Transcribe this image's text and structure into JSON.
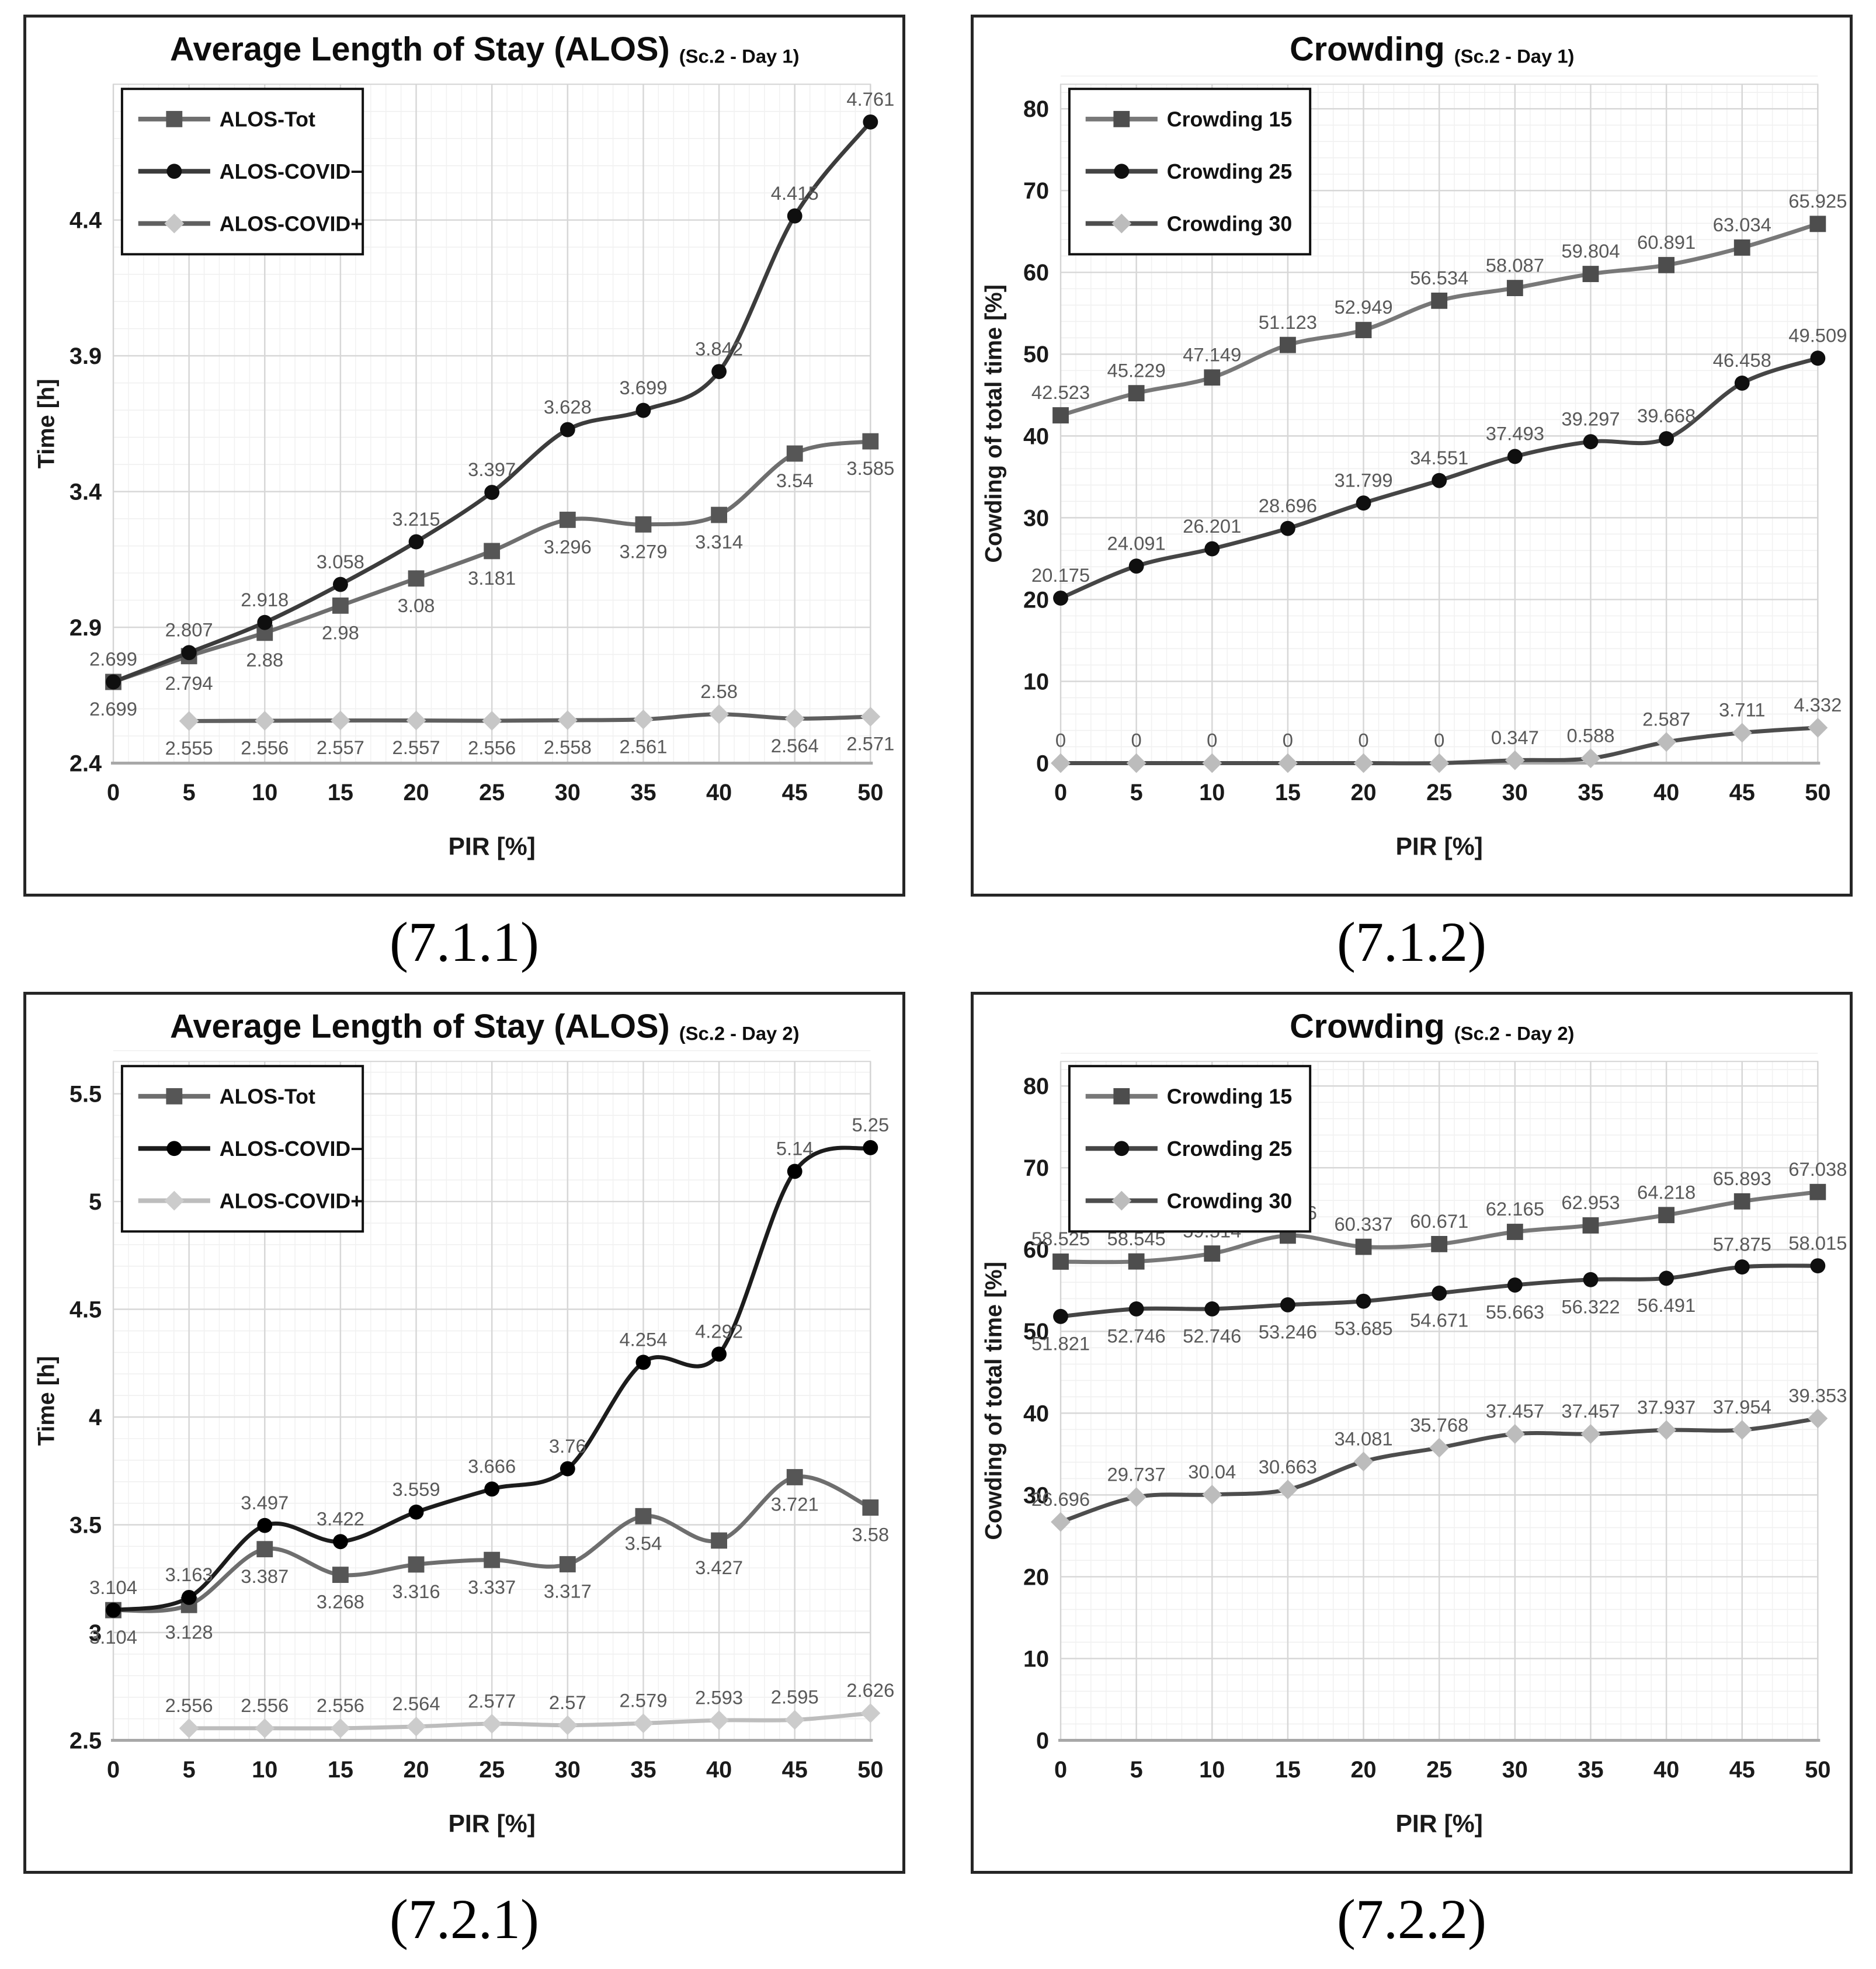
{
  "page": {
    "background": "#ffffff"
  },
  "chart_data": [
    {
      "caption": "(7.1.1)",
      "type": "line",
      "title": "Average Length of Stay (ALOS)",
      "title_tag": "(Sc.2 - Day 1)",
      "xlabel": "PIR [%]",
      "ylabel": "Time [h]",
      "x": [
        0,
        5,
        10,
        15,
        20,
        25,
        30,
        35,
        40,
        45,
        50
      ],
      "ylim": [
        2.4,
        4.9
      ],
      "yticks": [
        2.4,
        2.9,
        3.4,
        3.9,
        4.4
      ],
      "y_minor": 0.1,
      "grid": true,
      "legend_position": "top-left",
      "series": [
        {
          "name": "ALOS-Tot",
          "marker": "square",
          "line_color": "#6e6e6e",
          "marker_color": "#565656",
          "label_side": "below",
          "values": [
            "2.699",
            "2.794",
            "2.88",
            "2.98",
            "3.08",
            "3.181",
            "3.296",
            "3.279",
            "3.314",
            "3.54",
            "3.585"
          ]
        },
        {
          "name": "ALOS-COVID−",
          "marker": "circle",
          "line_color": "#3c3c3c",
          "marker_color": "#0f0f0f",
          "label_side": "above",
          "values": [
            "2.699",
            "2.807",
            "2.918",
            "3.058",
            "3.215",
            "3.397",
            "3.628",
            "3.699",
            "3.842",
            "4.415",
            "4.761"
          ]
        },
        {
          "name": "ALOS-COVID+",
          "marker": "diamond",
          "line_color": "#5f5f5f",
          "marker_color": "#c7c7c7",
          "label_side": "below",
          "label_sides": [
            null,
            null,
            null,
            null,
            null,
            null,
            null,
            null,
            "above",
            null,
            null
          ],
          "values": [
            null,
            "2.555",
            "2.556",
            "2.557",
            "2.557",
            "2.556",
            "2.558",
            "2.561",
            "2.58",
            "2.564",
            "2.571"
          ]
        }
      ]
    },
    {
      "caption": "(7.1.2)",
      "type": "line",
      "title": "Crowding",
      "title_tag": "(Sc.2 - Day 1)",
      "xlabel": "PIR [%]",
      "ylabel": "Cowding of total time [%]",
      "x": [
        0,
        5,
        10,
        15,
        20,
        25,
        30,
        35,
        40,
        45,
        50
      ],
      "ylim": [
        0,
        83
      ],
      "yticks": [
        0,
        10,
        20,
        30,
        40,
        50,
        60,
        70,
        80
      ],
      "y_minor": 2,
      "grid": true,
      "legend_position": "top-left",
      "series": [
        {
          "name": "Crowding 15",
          "marker": "square",
          "line_color": "#787878",
          "marker_color": "#4d4d4d",
          "label_side": "above",
          "values": [
            "42.523",
            "45.229",
            "47.149",
            "51.123",
            "52.949",
            "56.534",
            "58.087",
            "59.804",
            "60.891",
            "63.034",
            "65.925"
          ]
        },
        {
          "name": "Crowding 25",
          "marker": "circle",
          "line_color": "#454545",
          "marker_color": "#0f0f0f",
          "label_side": "above",
          "values": [
            "20.175",
            "24.091",
            "26.201",
            "28.696",
            "31.799",
            "34.551",
            "37.493",
            "39.297",
            "39.668",
            "46.458",
            "49.509"
          ]
        },
        {
          "name": "Crowding 30",
          "marker": "diamond",
          "line_color": "#4d4d4d",
          "marker_color": "#bcbcbc",
          "label_side": "above",
          "values": [
            "0",
            "0",
            "0",
            "0",
            "0",
            "0",
            "0.347",
            "0.588",
            "2.587",
            "3.711",
            "4.332"
          ]
        }
      ]
    },
    {
      "caption": "(7.2.1)",
      "type": "line",
      "title": "Average Length of Stay (ALOS)",
      "title_tag": "(Sc.2 - Day 2)",
      "xlabel": "PIR [%]",
      "ylabel": "Time [h]",
      "x": [
        0,
        5,
        10,
        15,
        20,
        25,
        30,
        35,
        40,
        45,
        50
      ],
      "ylim": [
        2.5,
        5.65
      ],
      "yticks": [
        2.5,
        3,
        3.5,
        4,
        4.5,
        5,
        5.5
      ],
      "y_minor": 0.1,
      "grid": true,
      "legend_position": "top-left",
      "series": [
        {
          "name": "ALOS-Tot",
          "marker": "square",
          "line_color": "#6e6e6e",
          "marker_color": "#565656",
          "label_side": "below",
          "values": [
            "3.104",
            "3.128",
            "3.387",
            "3.268",
            "3.316",
            "3.337",
            "3.317",
            "3.54",
            "3.427",
            "3.721",
            "3.58"
          ]
        },
        {
          "name": "ALOS-COVID−",
          "marker": "circle",
          "line_color": "#1c1c1c",
          "marker_color": "#000000",
          "label_side": "above",
          "values": [
            "3.104",
            "3.163",
            "3.497",
            "3.422",
            "3.559",
            "3.666",
            "3.76",
            "4.254",
            "4.292",
            "5.14",
            "5.25"
          ]
        },
        {
          "name": "ALOS-COVID+",
          "marker": "diamond",
          "line_color": "#bdbdbd",
          "marker_color": "#cccccc",
          "label_side": "above",
          "values": [
            null,
            "2.556",
            "2.556",
            "2.556",
            "2.564",
            "2.577",
            "2.57",
            "2.579",
            "2.593",
            "2.595",
            "2.626"
          ]
        }
      ]
    },
    {
      "caption": "(7.2.2)",
      "type": "line",
      "title": "Crowding",
      "title_tag": "(Sc.2 - Day 2)",
      "xlabel": "PIR [%]",
      "ylabel": "Cowding of total time [%]",
      "x": [
        0,
        5,
        10,
        15,
        20,
        25,
        30,
        35,
        40,
        45,
        50
      ],
      "ylim": [
        0,
        83
      ],
      "yticks": [
        0,
        10,
        20,
        30,
        40,
        50,
        60,
        70,
        80
      ],
      "y_minor": 2,
      "grid": true,
      "legend_position": "top-left",
      "series": [
        {
          "name": "Crowding 15",
          "marker": "square",
          "line_color": "#787878",
          "marker_color": "#4d4d4d",
          "label_side": "above",
          "values": [
            "58.525",
            "58.545",
            "59.514",
            "61.706",
            "60.337",
            "60.671",
            "62.165",
            "62.953",
            "64.218",
            "65.893",
            "67.038"
          ]
        },
        {
          "name": "Crowding 25",
          "marker": "circle",
          "line_color": "#454545",
          "marker_color": "#0f0f0f",
          "label_side": "below",
          "label_sides": [
            null,
            null,
            null,
            null,
            null,
            null,
            null,
            null,
            null,
            "above",
            "above"
          ],
          "values": [
            "51.821",
            "52.746",
            "52.746",
            "53.246",
            "53.685",
            "54.671",
            "55.663",
            "56.322",
            "56.491",
            "57.875",
            "58.015"
          ]
        },
        {
          "name": "Crowding 30",
          "marker": "diamond",
          "line_color": "#4d4d4d",
          "marker_color": "#bcbcbc",
          "label_side": "above",
          "values": [
            "26.696",
            "29.737",
            "30.04",
            "30.663",
            "34.081",
            "35.768",
            "37.457",
            "37.457",
            "37.937",
            "37.954",
            "39.353"
          ]
        }
      ]
    }
  ]
}
